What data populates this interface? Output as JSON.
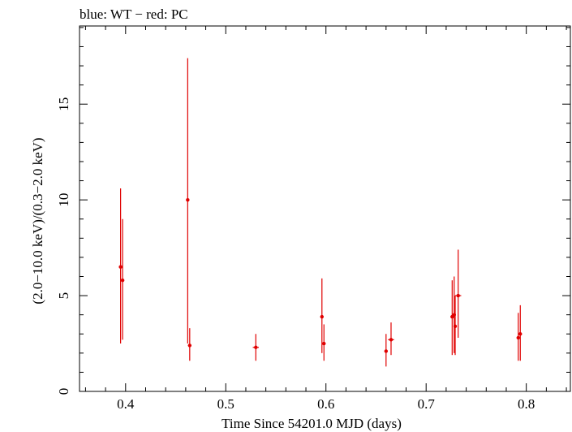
{
  "chart_data": {
    "type": "scatter",
    "title": "blue: WT − red: PC",
    "xlabel": "Time Since 54201.0 MJD (days)",
    "ylabel": "(2.0−10.0 keV)/(0.3−2.0 keV)",
    "xlim": [
      0.354,
      0.844
    ],
    "ylim": [
      0,
      19.08
    ],
    "x_ticks": [
      0.4,
      0.5,
      0.6,
      0.7,
      0.8
    ],
    "x_tick_labels": [
      "0.4",
      "0.5",
      "0.6",
      "0.7",
      "0.8"
    ],
    "y_ticks": [
      0,
      5,
      10,
      15
    ],
    "y_tick_labels": [
      "0",
      "5",
      "10",
      "15"
    ],
    "grid": false,
    "series": [
      {
        "name": "PC",
        "color": "#e00000",
        "points": [
          {
            "x": 0.395,
            "y": 6.5,
            "ylo": 2.5,
            "yhi": 10.6,
            "xerr": 0.0016
          },
          {
            "x": 0.397,
            "y": 5.8,
            "ylo": 2.7,
            "yhi": 9.0,
            "xerr": 0.0016
          },
          {
            "x": 0.462,
            "y": 10.0,
            "ylo": 2.5,
            "yhi": 17.4,
            "xerr": 0.0016
          },
          {
            "x": 0.464,
            "y": 2.4,
            "ylo": 1.6,
            "yhi": 3.3,
            "xerr": 0.0016
          },
          {
            "x": 0.53,
            "y": 2.3,
            "ylo": 1.6,
            "yhi": 3.0,
            "xerr": 0.003
          },
          {
            "x": 0.596,
            "y": 3.9,
            "ylo": 2.0,
            "yhi": 5.9,
            "xerr": 0.0016
          },
          {
            "x": 0.598,
            "y": 2.5,
            "ylo": 1.6,
            "yhi": 3.5,
            "xerr": 0.0016
          },
          {
            "x": 0.66,
            "y": 2.1,
            "ylo": 1.3,
            "yhi": 3.0,
            "xerr": 0.0016
          },
          {
            "x": 0.665,
            "y": 2.7,
            "ylo": 1.9,
            "yhi": 3.6,
            "xerr": 0.003
          },
          {
            "x": 0.726,
            "y": 3.9,
            "ylo": 1.9,
            "yhi": 5.8,
            "xerr": 0.0016
          },
          {
            "x": 0.728,
            "y": 4.0,
            "ylo": 2.0,
            "yhi": 6.0,
            "xerr": 0.0016
          },
          {
            "x": 0.729,
            "y": 3.4,
            "ylo": 1.9,
            "yhi": 5.0,
            "xerr": 0.0016
          },
          {
            "x": 0.732,
            "y": 5.0,
            "ylo": 2.8,
            "yhi": 7.4,
            "xerr": 0.003
          },
          {
            "x": 0.792,
            "y": 2.8,
            "ylo": 1.6,
            "yhi": 4.1,
            "xerr": 0.0016
          },
          {
            "x": 0.794,
            "y": 3.0,
            "ylo": 1.6,
            "yhi": 4.5,
            "xerr": 0.0016
          }
        ]
      }
    ]
  }
}
